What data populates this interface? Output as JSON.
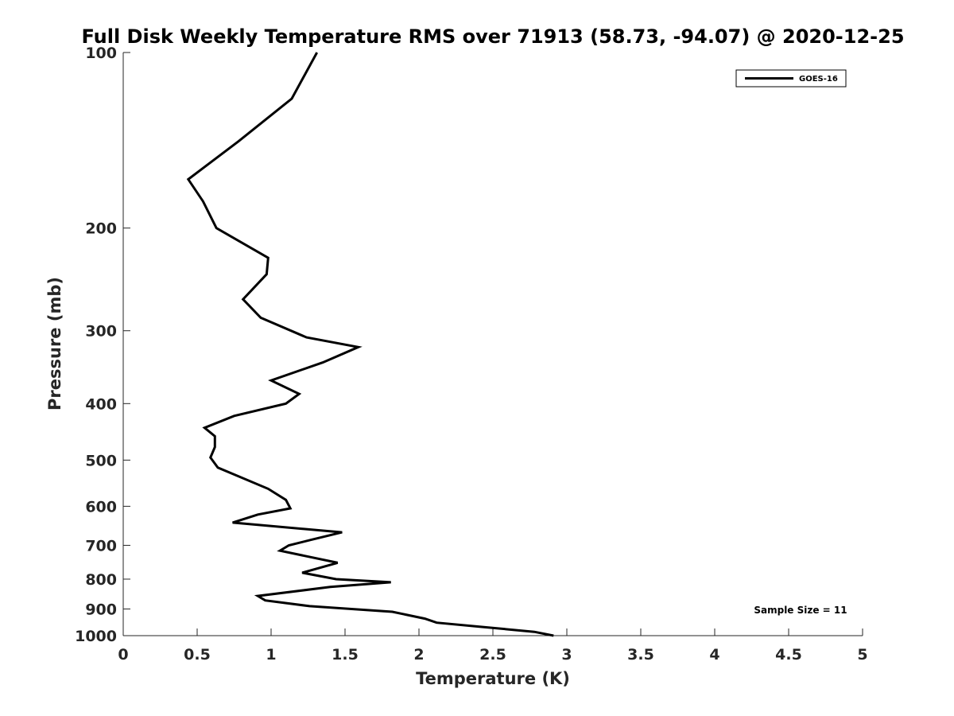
{
  "chart_data": {
    "type": "line",
    "title": "Full Disk Weekly Temperature RMS over 71913 (58.73, -94.07) @ 2020-12-25",
    "xlabel": "Temperature (K)",
    "ylabel": "Pressure (mb)",
    "xlim": [
      0,
      5
    ],
    "ylim": [
      100,
      1000
    ],
    "y_scale": "log",
    "y_reversed": true,
    "x_ticks": [
      "0",
      "0.5",
      "1",
      "1.5",
      "2",
      "2.5",
      "3",
      "3.5",
      "4",
      "4.5",
      "5"
    ],
    "y_ticks": [
      "100",
      "200",
      "300",
      "400",
      "500",
      "600",
      "700",
      "800",
      "900",
      "1000"
    ],
    "grid": false,
    "legend_position": "top-right",
    "series": [
      {
        "name": "GOES-16",
        "color": "#000000",
        "x": [
          1.31,
          1.14,
          0.78,
          0.44,
          0.54,
          0.63,
          0.98,
          0.97,
          0.81,
          0.93,
          1.24,
          1.59,
          1.35,
          1.0,
          1.19,
          1.1,
          0.75,
          0.55,
          0.62,
          0.62,
          0.59,
          0.64,
          0.98,
          1.1,
          1.13,
          0.91,
          0.74,
          1.48,
          1.27,
          1.12,
          1.06,
          1.45,
          1.21,
          1.44,
          1.81,
          1.4,
          0.91,
          0.96,
          1.26,
          1.82,
          2.04,
          2.12,
          2.41,
          2.78,
          2.91
        ],
        "y": [
          100,
          120,
          142,
          165,
          180,
          200,
          225,
          240,
          265,
          285,
          308,
          320,
          340,
          365,
          385,
          400,
          420,
          440,
          455,
          475,
          495,
          515,
          560,
          585,
          605,
          620,
          640,
          665,
          685,
          700,
          715,
          750,
          780,
          800,
          810,
          825,
          855,
          870,
          890,
          910,
          935,
          950,
          965,
          985,
          1000
        ]
      }
    ],
    "annotation": "Sample Size = 11"
  }
}
